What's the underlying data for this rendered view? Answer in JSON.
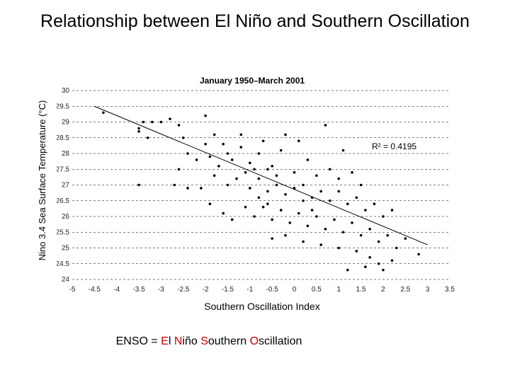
{
  "title": "Relationship between El Niño and Southern Oscillation",
  "footnote": {
    "prefix": "ENSO = ",
    "e": "E",
    "l": "l ",
    "n": "N",
    "ino": "iño ",
    "s": "S",
    "outhern": "outhern ",
    "o": "O",
    "scillation": "scillation"
  },
  "colors": {
    "highlight": "#cc0000",
    "points": "#000000",
    "grid": "#000000",
    "trend": "#000000"
  },
  "chart_data": {
    "type": "scatter",
    "title": "January 1950–March 2001",
    "xlabel": "Southern Oscillation Index",
    "ylabel": "Nino 3.4 Sea Surface Temperature (°C)",
    "xlim": [
      -5,
      3.5
    ],
    "ylim": [
      24,
      30
    ],
    "x_ticks": [
      "-5",
      "-4.5",
      "-4",
      "-3.5",
      "-3",
      "-2.5",
      "-2",
      "-1.5",
      "-1",
      "-0.5",
      "0",
      "0.5",
      "1",
      "1.5",
      "2",
      "2.5",
      "3",
      "3.5"
    ],
    "y_ticks": [
      "24",
      "24.5",
      "25",
      "25.5",
      "26",
      "26.5",
      "27",
      "27.5",
      "28",
      "28.5",
      "29",
      "29.5",
      "30"
    ],
    "grid": "horizontal dashed",
    "annotation": "R² = 0.4195",
    "trendline": {
      "x": [
        -4.5,
        3
      ],
      "y": [
        29.5,
        25.1
      ]
    },
    "points": [
      [
        -4.3,
        29.3
      ],
      [
        -3.5,
        28.7
      ],
      [
        -3.5,
        28.8
      ],
      [
        -3.4,
        29.0
      ],
      [
        -3.2,
        29.0
      ],
      [
        -3.3,
        28.5
      ],
      [
        -3.0,
        29.0
      ],
      [
        -2.8,
        29.1
      ],
      [
        -2.6,
        28.9
      ],
      [
        -2.6,
        27.5
      ],
      [
        -2.5,
        28.5
      ],
      [
        -2.4,
        28.0
      ],
      [
        -2.2,
        27.8
      ],
      [
        -2.0,
        29.2
      ],
      [
        -2.0,
        28.3
      ],
      [
        -1.9,
        27.9
      ],
      [
        -1.8,
        28.6
      ],
      [
        -1.7,
        27.6
      ],
      [
        -1.6,
        28.3
      ],
      [
        -1.5,
        28.0
      ],
      [
        -1.4,
        27.8
      ],
      [
        -1.2,
        28.2
      ],
      [
        -1.0,
        27.7
      ],
      [
        -0.8,
        28.0
      ],
      [
        -0.5,
        27.6
      ],
      [
        -0.3,
        28.1
      ],
      [
        0.0,
        27.4
      ],
      [
        -3.5,
        27.0
      ],
      [
        -2.7,
        27.0
      ],
      [
        -2.4,
        26.9
      ],
      [
        -2.1,
        26.9
      ],
      [
        -1.8,
        27.3
      ],
      [
        -1.5,
        27.0
      ],
      [
        -1.3,
        27.2
      ],
      [
        -1.0,
        26.9
      ],
      [
        -0.8,
        27.2
      ],
      [
        -0.6,
        26.8
      ],
      [
        -0.4,
        27.0
      ],
      [
        -0.2,
        26.7
      ],
      [
        0.0,
        26.9
      ],
      [
        0.2,
        27.0
      ],
      [
        0.4,
        26.6
      ],
      [
        0.6,
        26.8
      ],
      [
        0.8,
        26.5
      ],
      [
        1.0,
        26.8
      ],
      [
        1.2,
        26.4
      ],
      [
        1.4,
        26.6
      ],
      [
        1.6,
        26.2
      ],
      [
        1.8,
        26.4
      ],
      [
        2.0,
        26.0
      ],
      [
        2.2,
        26.2
      ],
      [
        -1.9,
        26.4
      ],
      [
        -1.6,
        26.1
      ],
      [
        -1.4,
        25.9
      ],
      [
        -1.1,
        26.3
      ],
      [
        -0.9,
        26.0
      ],
      [
        -0.7,
        26.3
      ],
      [
        -0.5,
        25.9
      ],
      [
        -0.3,
        26.2
      ],
      [
        -0.1,
        25.8
      ],
      [
        0.1,
        26.1
      ],
      [
        0.3,
        25.7
      ],
      [
        0.5,
        26.0
      ],
      [
        0.7,
        25.6
      ],
      [
        0.9,
        25.9
      ],
      [
        1.1,
        25.5
      ],
      [
        1.3,
        25.8
      ],
      [
        1.5,
        25.4
      ],
      [
        1.7,
        25.6
      ],
      [
        1.9,
        25.2
      ],
      [
        2.1,
        25.4
      ],
      [
        2.3,
        25.0
      ],
      [
        2.5,
        25.3
      ],
      [
        2.8,
        24.8
      ],
      [
        -0.5,
        25.3
      ],
      [
        -0.2,
        25.4
      ],
      [
        0.2,
        25.2
      ],
      [
        0.6,
        25.1
      ],
      [
        1.0,
        25.0
      ],
      [
        1.4,
        24.9
      ],
      [
        1.7,
        24.7
      ],
      [
        1.9,
        24.5
      ],
      [
        2.2,
        24.6
      ],
      [
        1.2,
        24.3
      ],
      [
        1.6,
        24.4
      ],
      [
        2.0,
        24.3
      ],
      [
        0.3,
        27.8
      ],
      [
        0.5,
        27.3
      ],
      [
        0.8,
        27.5
      ],
      [
        1.0,
        27.2
      ],
      [
        1.3,
        27.4
      ],
      [
        1.5,
        27.0
      ],
      [
        0.1,
        28.4
      ],
      [
        -0.2,
        28.6
      ],
      [
        -0.7,
        28.4
      ],
      [
        -1.2,
        28.6
      ],
      [
        1.1,
        28.1
      ],
      [
        0.7,
        28.9
      ],
      [
        -0.9,
        27.5
      ],
      [
        -1.1,
        27.4
      ],
      [
        -0.6,
        27.5
      ],
      [
        -0.4,
        27.3
      ],
      [
        0.2,
        26.5
      ],
      [
        0.4,
        26.2
      ],
      [
        -0.8,
        26.6
      ],
      [
        -0.6,
        26.4
      ]
    ]
  }
}
